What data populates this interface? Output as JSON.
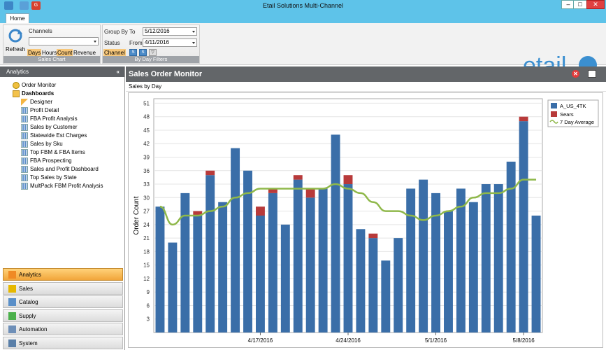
{
  "app": {
    "title": "Etail Solutions Multi-Channel"
  },
  "tabs": {
    "home": "Home"
  },
  "ribbon": {
    "refresh_label": "Refresh",
    "channels_label": "Channels",
    "channels_value": "",
    "days": "Days",
    "hours": "Hours",
    "count": "Count",
    "revenue": "Revenue",
    "sales_chart_caption": "Sales Chart",
    "group_by_label": "Group By",
    "status_label": "Status",
    "channel_option": "Channel",
    "to_label": "To",
    "to_value": "5/12/2016",
    "from_label": "From",
    "from_value": "4/11/2016",
    "by_day_filters_caption": "By Day Filters"
  },
  "logo_text": "etail",
  "sidebar": {
    "header": "Analytics",
    "collapse_glyph": "«",
    "order_monitor": "Order Monitor",
    "dashboards": "Dashboards",
    "items": [
      "Designer",
      "Profit Detail",
      "FBA Profit Analysis",
      "Sales by Customer",
      "Statewide Est Charges",
      "Sales by Sku",
      "Top FBM & FBA Items",
      "FBA Prospecting",
      "Sales and Profit Dashboard",
      "Top Sales by State",
      "MultPack FBM Profit Analysis"
    ],
    "nav": [
      "Analytics",
      "Sales",
      "Catalog",
      "Supply",
      "Automation",
      "System"
    ]
  },
  "main": {
    "title": "Sales Order Monitor",
    "subtitle": "Sales by Day"
  },
  "colors": {
    "a_us": "#3a6ea8",
    "sears": "#b83a3a",
    "avg": "#8fb84a",
    "titlebar": "#5ec3e9"
  },
  "chart_data": {
    "type": "bar",
    "stacked": true,
    "ylabel": "Order Count",
    "ylim": [
      0,
      52
    ],
    "yticks": [
      3,
      6,
      9,
      12,
      15,
      18,
      21,
      24,
      27,
      30,
      33,
      36,
      39,
      42,
      45,
      48,
      51
    ],
    "x_tick_labels": [
      {
        "index": 8,
        "label": "4/17/2016"
      },
      {
        "index": 15,
        "label": "4/24/2016"
      },
      {
        "index": 22,
        "label": "5/1/2016"
      },
      {
        "index": 29,
        "label": "5/8/2016"
      }
    ],
    "legend_position": "top-right",
    "grid": "horizontal",
    "series": [
      {
        "name": "A_US_4TK",
        "values": [
          28,
          20,
          31,
          26,
          35,
          29,
          41,
          36,
          26,
          31,
          24,
          34,
          30,
          32,
          44,
          33,
          23,
          21,
          16,
          21,
          32,
          34,
          31,
          27,
          32,
          29,
          33,
          33,
          38,
          47,
          26
        ]
      },
      {
        "name": "Sears",
        "values": [
          0,
          0,
          0,
          1,
          1,
          0,
          0,
          0,
          2,
          1,
          0,
          1,
          2,
          0,
          0,
          2,
          0,
          1,
          0,
          0,
          0,
          0,
          0,
          0,
          0,
          0,
          0,
          0,
          0,
          1,
          0
        ]
      }
    ],
    "line": {
      "name": "7 Day Average",
      "values": [
        28,
        24,
        26,
        26,
        27,
        28,
        30,
        31,
        32,
        32,
        32,
        32,
        32,
        32,
        33,
        32,
        31,
        29,
        27,
        27,
        26,
        25,
        26,
        27,
        28,
        30,
        31,
        31,
        32,
        34,
        34
      ]
    }
  }
}
